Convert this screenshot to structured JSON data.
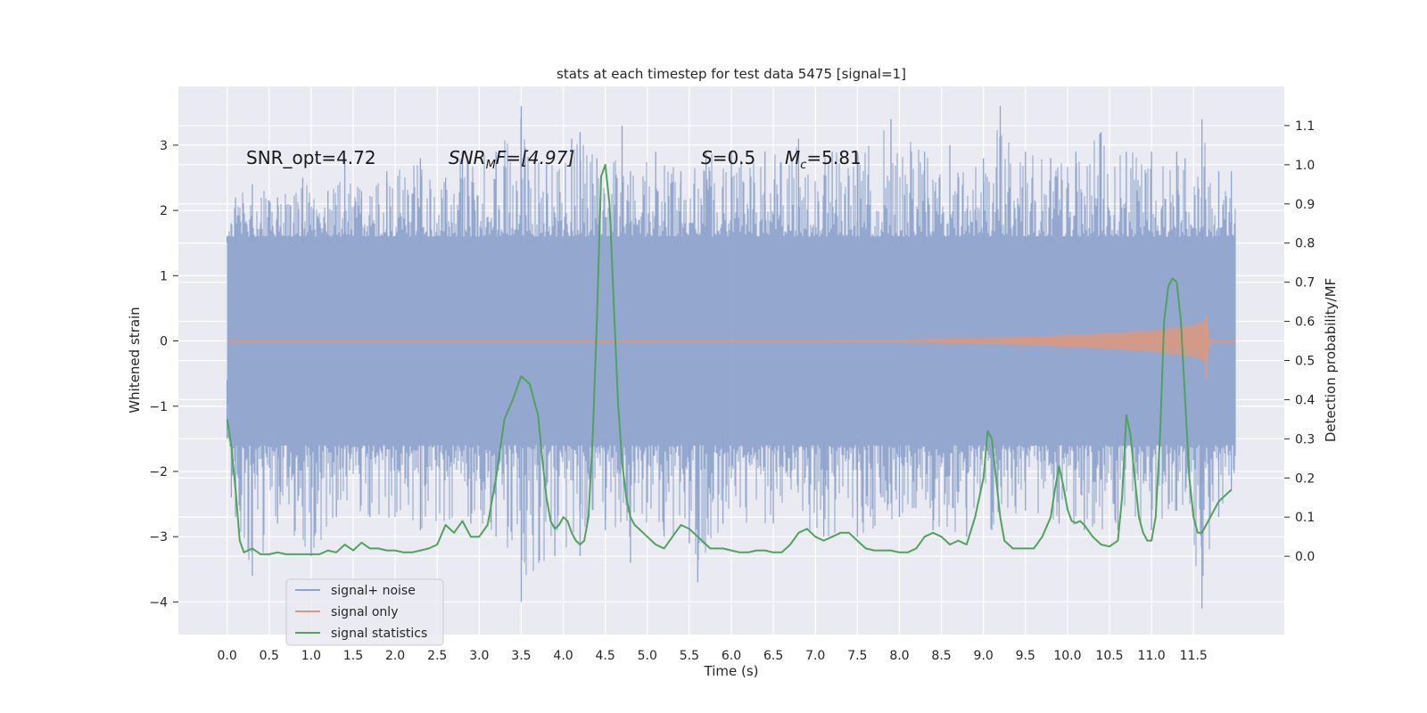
{
  "chart_data": {
    "type": "line",
    "title": "stats at each timestep for test data 5475 [signal=1]",
    "xlabel": "Time (s)",
    "ylabel_left": "Whitened strain",
    "ylabel_right": "Detection probability/MF",
    "xlim": [
      -0.58,
      12.58
    ],
    "ylim_left": [
      -4.5,
      3.9
    ],
    "ylim_right": [
      -0.2,
      1.2
    ],
    "x_ticks": [
      "0.0",
      "0.5",
      "1.0",
      "1.5",
      "2.0",
      "2.5",
      "3.0",
      "3.5",
      "4.0",
      "4.5",
      "5.0",
      "5.5",
      "6.0",
      "6.5",
      "7.0",
      "7.5",
      "8.0",
      "8.5",
      "9.0",
      "9.5",
      "10.0",
      "10.5",
      "11.0",
      "11.5"
    ],
    "y_left_ticks": [
      3,
      2,
      1,
      0,
      -1,
      -2,
      -3,
      -4
    ],
    "y_left_tick_labels": [
      "3",
      "2",
      "1",
      "0",
      "−1",
      "−2",
      "−3",
      "−4"
    ],
    "y_right_ticks": [
      "1.1",
      "1.0",
      "0.9",
      "0.8",
      "0.7",
      "0.6",
      "0.5",
      "0.4",
      "0.3",
      "0.2",
      "0.1",
      "0.0"
    ],
    "grid": true,
    "legend_position": "lower-left",
    "annotations": {
      "snr_opt": "SNR_opt=4.72",
      "snr_mf_main": "SNR",
      "snr_mf_sub": "M",
      "snr_mf_rest": "F=[4.97]",
      "s_main": "S",
      "s_rest": "=0.5",
      "mc_main": "M",
      "mc_sub": "c",
      "mc_rest": "=5.81"
    },
    "series": [
      {
        "name": "signal+ noise",
        "color": "#8fa4cc",
        "axis": "left",
        "x_range": [
          0.0,
          12.0
        ],
        "envelope_typical": [
          -1.6,
          1.6
        ],
        "upper_peaks": [
          [
            0.0,
            1.6
          ],
          [
            0.1,
            2.2
          ],
          [
            0.3,
            2.4
          ],
          [
            0.6,
            2.2
          ],
          [
            0.9,
            2.5
          ],
          [
            1.2,
            2.3
          ],
          [
            1.4,
            2.8
          ],
          [
            1.6,
            2.3
          ],
          [
            1.9,
            2.6
          ],
          [
            2.3,
            2.8
          ],
          [
            2.6,
            2.5
          ],
          [
            2.8,
            2.9
          ],
          [
            3.2,
            2.9
          ],
          [
            3.5,
            3.6
          ],
          [
            3.8,
            2.7
          ],
          [
            4.1,
            3.1
          ],
          [
            4.2,
            3.2
          ],
          [
            4.4,
            2.8
          ],
          [
            4.7,
            3.3
          ],
          [
            4.8,
            2.6
          ],
          [
            5.1,
            2.9
          ],
          [
            5.4,
            2.6
          ],
          [
            5.7,
            2.9
          ],
          [
            6.0,
            2.9
          ],
          [
            6.4,
            2.9
          ],
          [
            6.8,
            3.1
          ],
          [
            7.2,
            2.9
          ],
          [
            7.5,
            2.9
          ],
          [
            7.9,
            3.4
          ],
          [
            8.3,
            2.9
          ],
          [
            8.6,
            3.0
          ],
          [
            9.0,
            2.8
          ],
          [
            9.2,
            3.6
          ],
          [
            9.5,
            2.9
          ],
          [
            9.8,
            2.8
          ],
          [
            10.1,
            2.9
          ],
          [
            10.4,
            3.2
          ],
          [
            10.7,
            2.9
          ],
          [
            11.0,
            2.9
          ],
          [
            11.3,
            2.9
          ],
          [
            11.4,
            2.8
          ],
          [
            11.6,
            3.4
          ],
          [
            11.8,
            2.6
          ],
          [
            11.95,
            2.6
          ]
        ],
        "lower_peaks": [
          [
            0.0,
            -0.6
          ],
          [
            0.05,
            -2.4
          ],
          [
            0.1,
            -2.7
          ],
          [
            0.3,
            -3.6
          ],
          [
            0.6,
            -2.8
          ],
          [
            1.0,
            -3.3
          ],
          [
            1.3,
            -2.7
          ],
          [
            1.7,
            -2.7
          ],
          [
            2.3,
            -2.9
          ],
          [
            2.9,
            -2.8
          ],
          [
            3.2,
            -3.0
          ],
          [
            3.5,
            -4.0
          ],
          [
            3.9,
            -3.3
          ],
          [
            4.2,
            -3.3
          ],
          [
            4.5,
            -2.9
          ],
          [
            4.8,
            -3.4
          ],
          [
            5.2,
            -3.0
          ],
          [
            5.5,
            -3.1
          ],
          [
            5.6,
            -3.7
          ],
          [
            5.9,
            -2.8
          ],
          [
            6.5,
            -2.8
          ],
          [
            7.1,
            -3.0
          ],
          [
            7.5,
            -3.0
          ],
          [
            8.0,
            -2.7
          ],
          [
            8.4,
            -2.9
          ],
          [
            8.8,
            -3.0
          ],
          [
            9.1,
            -2.9
          ],
          [
            9.5,
            -2.6
          ],
          [
            9.9,
            -2.8
          ],
          [
            10.2,
            -2.9
          ],
          [
            10.6,
            -2.9
          ],
          [
            11.0,
            -2.9
          ],
          [
            11.3,
            -2.6
          ],
          [
            11.6,
            -4.1
          ],
          [
            11.8,
            -2.7
          ],
          [
            11.95,
            -2.3
          ]
        ]
      },
      {
        "name": "signal only",
        "color": "#e0977a",
        "axis": "left",
        "x_range": [
          0.0,
          12.0
        ],
        "amplitude_envelope": [
          [
            0.0,
            0.0
          ],
          [
            6.5,
            0.0
          ],
          [
            7.5,
            0.01
          ],
          [
            8.5,
            0.03
          ],
          [
            9.5,
            0.06
          ],
          [
            10.5,
            0.12
          ],
          [
            11.0,
            0.16
          ],
          [
            11.5,
            0.24
          ],
          [
            11.65,
            0.32
          ],
          [
            11.7,
            0.0
          ],
          [
            12.0,
            0.0
          ]
        ],
        "burst_extremes": [
          0.39,
          -0.57
        ]
      },
      {
        "name": "signal statistics",
        "color": "#4fa35c",
        "axis": "right",
        "x": [
          0.0,
          0.05,
          0.1,
          0.15,
          0.2,
          0.3,
          0.4,
          0.5,
          0.6,
          0.7,
          0.8,
          0.9,
          1.0,
          1.1,
          1.2,
          1.3,
          1.4,
          1.5,
          1.6,
          1.7,
          1.8,
          1.9,
          2.0,
          2.1,
          2.2,
          2.3,
          2.4,
          2.5,
          2.6,
          2.7,
          2.8,
          2.9,
          3.0,
          3.1,
          3.2,
          3.3,
          3.4,
          3.5,
          3.6,
          3.7,
          3.75,
          3.8,
          3.85,
          3.9,
          3.95,
          4.0,
          4.05,
          4.1,
          4.15,
          4.2,
          4.25,
          4.3,
          4.35,
          4.4,
          4.45,
          4.5,
          4.55,
          4.6,
          4.65,
          4.7,
          4.75,
          4.8,
          4.85,
          4.9,
          4.95,
          5.0,
          5.05,
          5.1,
          5.15,
          5.2,
          5.3,
          5.4,
          5.5,
          5.6,
          5.7,
          5.75,
          5.8,
          5.9,
          6.0,
          6.1,
          6.2,
          6.3,
          6.4,
          6.5,
          6.6,
          6.7,
          6.8,
          6.9,
          7.0,
          7.1,
          7.2,
          7.3,
          7.4,
          7.5,
          7.6,
          7.7,
          7.8,
          7.9,
          8.0,
          8.1,
          8.2,
          8.3,
          8.4,
          8.5,
          8.6,
          8.7,
          8.8,
          8.9,
          9.0,
          9.05,
          9.1,
          9.15,
          9.2,
          9.25,
          9.3,
          9.35,
          9.4,
          9.5,
          9.6,
          9.7,
          9.8,
          9.85,
          9.9,
          9.95,
          10.0,
          10.05,
          10.1,
          10.15,
          10.2,
          10.3,
          10.4,
          10.5,
          10.6,
          10.65,
          10.7,
          10.75,
          10.8,
          10.85,
          10.9,
          10.95,
          11.0,
          11.05,
          11.1,
          11.15,
          11.2,
          11.25,
          11.3,
          11.35,
          11.4,
          11.45,
          11.5,
          11.55,
          11.6,
          11.65,
          11.7,
          11.8,
          11.9,
          11.95
        ],
        "y": [
          0.35,
          0.28,
          0.17,
          0.04,
          0.01,
          0.02,
          0.005,
          0.005,
          0.01,
          0.005,
          0.005,
          0.005,
          0.005,
          0.005,
          0.015,
          0.01,
          0.03,
          0.015,
          0.035,
          0.02,
          0.02,
          0.015,
          0.015,
          0.01,
          0.01,
          0.015,
          0.02,
          0.03,
          0.08,
          0.06,
          0.09,
          0.05,
          0.05,
          0.08,
          0.2,
          0.35,
          0.4,
          0.46,
          0.44,
          0.36,
          0.25,
          0.15,
          0.09,
          0.07,
          0.08,
          0.1,
          0.09,
          0.06,
          0.04,
          0.03,
          0.04,
          0.1,
          0.3,
          0.6,
          0.97,
          1.0,
          0.9,
          0.65,
          0.4,
          0.24,
          0.15,
          0.1,
          0.08,
          0.07,
          0.06,
          0.05,
          0.04,
          0.03,
          0.025,
          0.02,
          0.05,
          0.08,
          0.07,
          0.05,
          0.03,
          0.02,
          0.02,
          0.02,
          0.015,
          0.01,
          0.01,
          0.015,
          0.015,
          0.01,
          0.01,
          0.03,
          0.06,
          0.07,
          0.05,
          0.04,
          0.05,
          0.06,
          0.06,
          0.04,
          0.02,
          0.015,
          0.015,
          0.015,
          0.01,
          0.01,
          0.02,
          0.05,
          0.06,
          0.05,
          0.03,
          0.04,
          0.03,
          0.1,
          0.2,
          0.32,
          0.3,
          0.2,
          0.1,
          0.04,
          0.03,
          0.02,
          0.02,
          0.02,
          0.02,
          0.05,
          0.1,
          0.17,
          0.23,
          0.18,
          0.12,
          0.09,
          0.085,
          0.09,
          0.08,
          0.05,
          0.03,
          0.025,
          0.04,
          0.15,
          0.36,
          0.31,
          0.2,
          0.1,
          0.06,
          0.04,
          0.04,
          0.1,
          0.3,
          0.6,
          0.69,
          0.71,
          0.7,
          0.6,
          0.4,
          0.2,
          0.1,
          0.06,
          0.06,
          0.08,
          0.1,
          0.14,
          0.16,
          0.17
        ]
      }
    ]
  },
  "legend": {
    "items": [
      {
        "label": "signal+ noise",
        "color": "#8fa4cc"
      },
      {
        "label": "signal only",
        "color": "#e0977a"
      },
      {
        "label": "signal statistics",
        "color": "#4fa35c"
      }
    ]
  },
  "style": {
    "plot_background": "#eaeaf2",
    "grid_color": "#ffffff"
  }
}
